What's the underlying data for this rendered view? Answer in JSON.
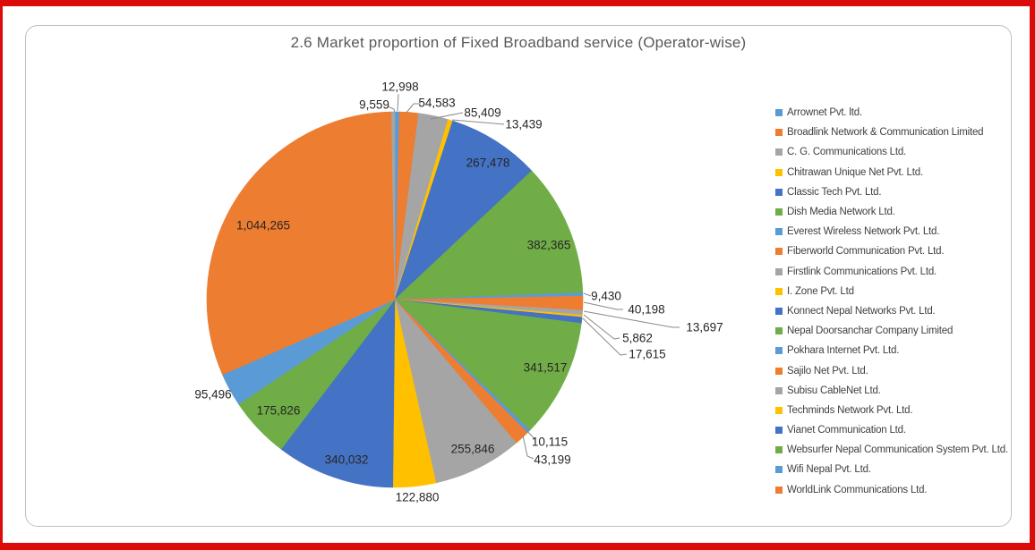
{
  "title": {
    "text": "2.6 Market proportion of Fixed Broadband service (Operator-wise)",
    "color": "#595959"
  },
  "chart_data": {
    "type": "pie",
    "title": "2.6 Market proportion of Fixed Broadband service (Operator-wise)",
    "legend_position": "right",
    "data_label_format": "thousands-separated values; small slices labeled outside with gray leader lines",
    "start_angle_deg": 0,
    "direction": "clockwise",
    "slices": [
      {
        "name": "Arrownet Pvt. ltd.",
        "value": 12998,
        "label": "12,998",
        "color": "#5B9BD5"
      },
      {
        "name": "Broadlink Network & Communication Limited",
        "value": 54583,
        "label": "54,583",
        "color": "#ED7D31"
      },
      {
        "name": "C. G. Communications Ltd.",
        "value": 85409,
        "label": "85,409",
        "color": "#A5A5A5"
      },
      {
        "name": "Chitrawan Unique Net Pvt. Ltd.",
        "value": 13439,
        "label": "13,439",
        "color": "#FFC000"
      },
      {
        "name": "Classic Tech Pvt. Ltd.",
        "value": 267478,
        "label": "267,478",
        "color": "#4472C4"
      },
      {
        "name": "Dish Media Network Ltd.",
        "value": 382365,
        "label": "382,365",
        "color": "#70AD47"
      },
      {
        "name": "Everest Wireless Network Pvt. Ltd.",
        "value": 9430,
        "label": "9,430",
        "color": "#5B9BD5"
      },
      {
        "name": "Fiberworld Communication Pvt. Ltd.",
        "value": 40198,
        "label": "40,198",
        "color": "#ED7D31"
      },
      {
        "name": "Firstlink Communications Pvt. Ltd.",
        "value": 13697,
        "label": "13,697",
        "color": "#A5A5A5"
      },
      {
        "name": "I. Zone Pvt. Ltd",
        "value": 5862,
        "label": "5,862",
        "color": "#FFC000"
      },
      {
        "name": "Konnect Nepal Networks Pvt. Ltd.",
        "value": 17615,
        "label": "17,615",
        "color": "#4472C4"
      },
      {
        "name": "Nepal Doorsanchar Company Limited",
        "value": 341517,
        "label": "341,517",
        "color": "#70AD47"
      },
      {
        "name": "Pokhara Internet Pvt. Ltd.",
        "value": 10115,
        "label": "10,115",
        "color": "#5B9BD5"
      },
      {
        "name": "Sajilo Net Pvt. Ltd.",
        "value": 43199,
        "label": "43,199",
        "color": "#ED7D31"
      },
      {
        "name": "Subisu CableNet Ltd.",
        "value": 255846,
        "label": "255,846",
        "color": "#A5A5A5"
      },
      {
        "name": "Techminds Network Pvt. Ltd.",
        "value": 122880,
        "label": "122,880",
        "color": "#FFC000"
      },
      {
        "name": "Vianet Communication Ltd.",
        "value": 340032,
        "label": "340,032",
        "color": "#4472C4"
      },
      {
        "name": "Websurfer Nepal Communication System Pvt. Ltd.",
        "value": 175826,
        "label": "175,826",
        "color": "#70AD47"
      },
      {
        "name": "Wifi Nepal Pvt. Ltd.",
        "value": 95496,
        "label": "95,496",
        "color": "#5B9BD5"
      },
      {
        "name": "WorldLink Communications Ltd.",
        "value": 1044265,
        "label": "1,044,265",
        "color": "#ED7D31"
      },
      {
        "name": "",
        "value": 9559,
        "label": "9,559",
        "color": "#A5A5A5"
      }
    ]
  },
  "legend": {
    "items": [
      {
        "label": "Arrownet Pvt. ltd.",
        "color": "#5B9BD5"
      },
      {
        "label": "Broadlink Network & Communication Limited",
        "color": "#ED7D31"
      },
      {
        "label": "C. G. Communications Ltd.",
        "color": "#A5A5A5"
      },
      {
        "label": "Chitrawan Unique Net Pvt. Ltd.",
        "color": "#FFC000"
      },
      {
        "label": "Classic Tech Pvt. Ltd.",
        "color": "#4472C4"
      },
      {
        "label": "Dish Media Network Ltd.",
        "color": "#70AD47"
      },
      {
        "label": "Everest Wireless Network Pvt. Ltd.",
        "color": "#5B9BD5"
      },
      {
        "label": "Fiberworld Communication Pvt. Ltd.",
        "color": "#ED7D31"
      },
      {
        "label": "Firstlink Communications Pvt. Ltd.",
        "color": "#A5A5A5"
      },
      {
        "label": "I. Zone Pvt. Ltd",
        "color": "#FFC000"
      },
      {
        "label": "Konnect Nepal Networks Pvt. Ltd.",
        "color": "#4472C4"
      },
      {
        "label": "Nepal Doorsanchar Company Limited",
        "color": "#70AD47"
      },
      {
        "label": "Pokhara Internet Pvt. Ltd.",
        "color": "#5B9BD5"
      },
      {
        "label": "Sajilo Net Pvt. Ltd.",
        "color": "#ED7D31"
      },
      {
        "label": "Subisu CableNet Ltd.",
        "color": "#A5A5A5"
      },
      {
        "label": "Techminds Network Pvt. Ltd.",
        "color": "#FFC000"
      },
      {
        "label": "Vianet Communication Ltd.",
        "color": "#4472C4"
      },
      {
        "label": "Websurfer Nepal Communication System Pvt. Ltd.",
        "color": "#70AD47"
      },
      {
        "label": "Wifi Nepal Pvt. Ltd.",
        "color": "#5B9BD5"
      },
      {
        "label": "WorldLink Communications Ltd.",
        "color": "#ED7D31"
      }
    ]
  },
  "colors": {
    "page_border": "#DD0A0A",
    "card_border": "#BFBFBF",
    "title_text": "#595959",
    "label_text": "#262626",
    "legend_text": "#404040",
    "leader_line": "#898989",
    "background": "#FFFFFF"
  }
}
